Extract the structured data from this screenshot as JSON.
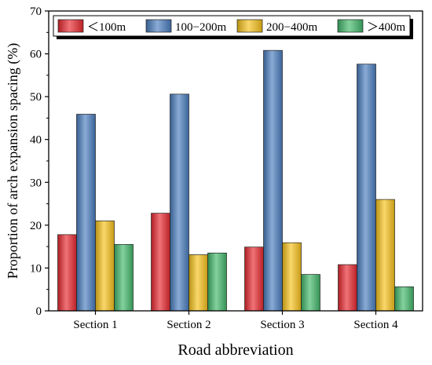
{
  "chart_data": {
    "type": "bar",
    "xlabel": "Road abbreviation",
    "ylabel": "Proportion of arch expansion spacing (%)",
    "ylim": [
      0,
      70
    ],
    "yticks": [
      0,
      10,
      20,
      30,
      40,
      50,
      60,
      70
    ],
    "categories": [
      "Section 1",
      "Section 2",
      "Section 3",
      "Section 4"
    ],
    "legend_position": "top",
    "grid": false,
    "series": [
      {
        "name": "＜100m",
        "color": "#e8282e",
        "values": [
          17.8,
          22.8,
          14.9,
          10.8
        ]
      },
      {
        "name": "100−200m",
        "color": "#4a7dbf",
        "values": [
          45.9,
          50.6,
          60.8,
          57.6
        ]
      },
      {
        "name": "200−400m",
        "color": "#f7c21b",
        "values": [
          21.0,
          13.1,
          15.9,
          26.0
        ]
      },
      {
        "name": "＞400m",
        "color": "#42b86a",
        "values": [
          15.5,
          13.5,
          8.5,
          5.6
        ]
      }
    ]
  }
}
